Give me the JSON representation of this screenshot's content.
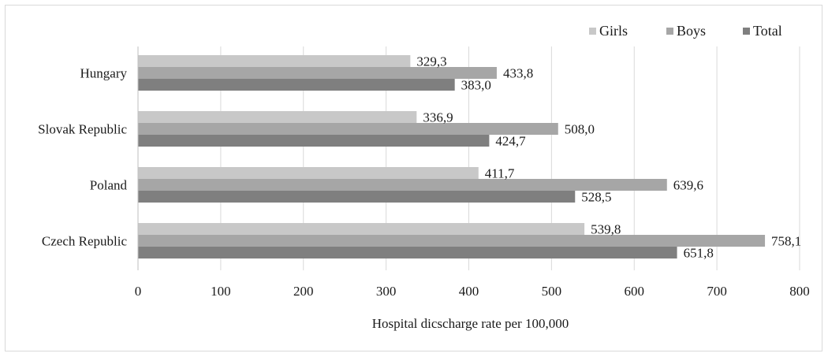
{
  "chart_data": {
    "type": "bar",
    "orientation": "horizontal",
    "categories": [
      "Hungary",
      "Slovak Republic",
      "Poland",
      "Czech Republic"
    ],
    "series": [
      {
        "name": "Girls",
        "values": [
          329.3,
          336.9,
          411.7,
          539.8
        ],
        "labels": [
          "329,3",
          "336,9",
          "411,7",
          "539,8"
        ],
        "color": "#c8c8c8"
      },
      {
        "name": "Boys",
        "values": [
          433.8,
          508.0,
          639.6,
          758.1
        ],
        "labels": [
          "433,8",
          "508,0",
          "639,6",
          "758,1"
        ],
        "color": "#a6a6a6"
      },
      {
        "name": "Total",
        "values": [
          383.0,
          424.7,
          528.5,
          651.8
        ],
        "labels": [
          "383,0",
          "424,7",
          "528,5",
          "651,8"
        ],
        "color": "#7f7f7f"
      }
    ],
    "xlabel": "Hospital dicscharge rate per 100,000",
    "ylabel": "",
    "xlim": [
      0,
      800
    ],
    "xticks": [
      "0",
      "100",
      "200",
      "300",
      "400",
      "500",
      "600",
      "700",
      "800"
    ],
    "grid": "vertical",
    "legend_position": "top-right"
  }
}
